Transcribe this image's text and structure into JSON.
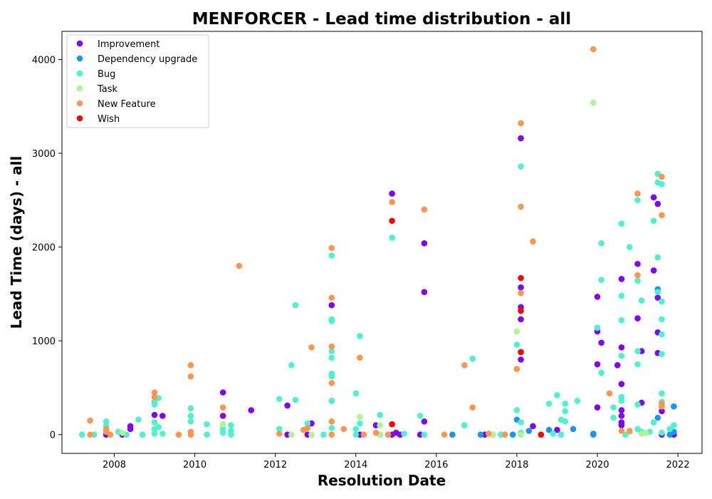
{
  "chart_data": {
    "type": "scatter",
    "title": "MENFORCER - Lead time distribution - all",
    "xlabel": "Resolution Date",
    "ylabel": "Lead Time (days) - all",
    "xlim": [
      2006.7,
      2022.6
    ],
    "ylim": [
      -200,
      4300
    ],
    "x_ticks": [
      2008,
      2010,
      2012,
      2014,
      2016,
      2018,
      2020,
      2022
    ],
    "x_tick_labels": [
      "2008",
      "2010",
      "2012",
      "2014",
      "2016",
      "2018",
      "2020",
      "2022"
    ],
    "y_ticks": [
      0,
      1000,
      2000,
      3000,
      4000
    ],
    "y_tick_labels": [
      "0",
      "1000",
      "2000",
      "3000",
      "4000"
    ],
    "grid": false,
    "legend_position": "top-left",
    "series": [
      {
        "name": "Improvement",
        "color": "#8000ff",
        "points": [
          [
            2007.8,
            0
          ],
          [
            2008.2,
            0
          ],
          [
            2008.4,
            60
          ],
          [
            2008.4,
            90
          ],
          [
            2009.0,
            210
          ],
          [
            2009.2,
            200
          ],
          [
            2010.7,
            450
          ],
          [
            2010.7,
            200
          ],
          [
            2011.4,
            260
          ],
          [
            2012.3,
            310
          ],
          [
            2012.3,
            0
          ],
          [
            2012.8,
            0
          ],
          [
            2012.9,
            120
          ],
          [
            2013.4,
            1380
          ],
          [
            2013.4,
            360
          ],
          [
            2014.1,
            0
          ],
          [
            2014.5,
            100
          ],
          [
            2014.6,
            0
          ],
          [
            2014.9,
            2570
          ],
          [
            2014.9,
            0
          ],
          [
            2015.0,
            20
          ],
          [
            2015.1,
            0
          ],
          [
            2015.6,
            0
          ],
          [
            2015.7,
            2040
          ],
          [
            2015.7,
            1520
          ],
          [
            2015.7,
            140
          ],
          [
            2017.2,
            0
          ],
          [
            2017.4,
            0
          ],
          [
            2018.1,
            1570
          ],
          [
            2018.1,
            1360
          ],
          [
            2018.1,
            1230
          ],
          [
            2018.1,
            800
          ],
          [
            2018.1,
            3160
          ],
          [
            2018.4,
            90
          ],
          [
            2019.0,
            50
          ],
          [
            2020.0,
            1470
          ],
          [
            2020.0,
            1100
          ],
          [
            2020.0,
            750
          ],
          [
            2020.0,
            290
          ],
          [
            2020.1,
            980
          ],
          [
            2020.5,
            740
          ],
          [
            2020.6,
            1660
          ],
          [
            2020.6,
            930
          ],
          [
            2020.6,
            540
          ],
          [
            2020.6,
            260
          ],
          [
            2020.6,
            200
          ],
          [
            2020.6,
            130
          ],
          [
            2020.6,
            100
          ],
          [
            2021.0,
            1820
          ],
          [
            2021.0,
            1240
          ],
          [
            2021.1,
            890
          ],
          [
            2021.1,
            340
          ],
          [
            2021.4,
            2530
          ],
          [
            2021.4,
            1750
          ],
          [
            2021.5,
            2460
          ],
          [
            2021.5,
            1460
          ],
          [
            2021.5,
            1090
          ],
          [
            2021.5,
            870
          ],
          [
            2021.6,
            250
          ],
          [
            2021.6,
            0
          ],
          [
            2021.9,
            0
          ]
        ]
      },
      {
        "name": "Dependency upgrade",
        "color": "#1996f3",
        "points": [
          [
            2016.4,
            0
          ],
          [
            2017.1,
            0
          ],
          [
            2017.9,
            0
          ],
          [
            2018.0,
            160
          ],
          [
            2018.3,
            40
          ],
          [
            2018.8,
            50
          ],
          [
            2019.4,
            60
          ],
          [
            2019.9,
            0
          ],
          [
            2019.9,
            10
          ],
          [
            2021.5,
            1550
          ],
          [
            2021.5,
            180
          ],
          [
            2021.8,
            0
          ],
          [
            2021.9,
            300
          ],
          [
            2021.9,
            30
          ]
        ]
      },
      {
        "name": "Bug",
        "color": "#4df3ce",
        "points": [
          [
            2007.2,
            0
          ],
          [
            2007.5,
            0
          ],
          [
            2007.8,
            140
          ],
          [
            2007.8,
            90
          ],
          [
            2008.1,
            30
          ],
          [
            2008.3,
            0
          ],
          [
            2008.6,
            160
          ],
          [
            2008.7,
            0
          ],
          [
            2009.0,
            350
          ],
          [
            2009.0,
            320
          ],
          [
            2009.0,
            130
          ],
          [
            2009.0,
            60
          ],
          [
            2009.0,
            10
          ],
          [
            2009.1,
            390
          ],
          [
            2009.1,
            80
          ],
          [
            2009.2,
            10
          ],
          [
            2009.9,
            280
          ],
          [
            2009.9,
            200
          ],
          [
            2009.9,
            140
          ],
          [
            2010.3,
            110
          ],
          [
            2010.3,
            0
          ],
          [
            2010.7,
            60
          ],
          [
            2010.7,
            20
          ],
          [
            2010.9,
            100
          ],
          [
            2010.9,
            40
          ],
          [
            2010.9,
            0
          ],
          [
            2012.1,
            380
          ],
          [
            2012.1,
            60
          ],
          [
            2012.4,
            740
          ],
          [
            2012.5,
            1380
          ],
          [
            2012.5,
            370
          ],
          [
            2012.8,
            120
          ],
          [
            2012.9,
            0
          ],
          [
            2013.2,
            0
          ],
          [
            2013.4,
            1910
          ],
          [
            2013.4,
            1230
          ],
          [
            2013.4,
            1210
          ],
          [
            2013.4,
            890
          ],
          [
            2013.4,
            820
          ],
          [
            2013.4,
            650
          ],
          [
            2013.4,
            620
          ],
          [
            2013.4,
            360
          ],
          [
            2013.4,
            140
          ],
          [
            2013.4,
            70
          ],
          [
            2014.0,
            440
          ],
          [
            2014.0,
            60
          ],
          [
            2014.0,
            0
          ],
          [
            2014.1,
            1050
          ],
          [
            2014.1,
            120
          ],
          [
            2014.6,
            210
          ],
          [
            2014.8,
            0
          ],
          [
            2014.9,
            2100
          ],
          [
            2015.2,
            10
          ],
          [
            2015.6,
            200
          ],
          [
            2015.7,
            0
          ],
          [
            2016.7,
            100
          ],
          [
            2016.9,
            810
          ],
          [
            2017.6,
            0
          ],
          [
            2018.0,
            960
          ],
          [
            2018.0,
            700
          ],
          [
            2018.0,
            260
          ],
          [
            2018.1,
            2860
          ],
          [
            2018.1,
            130
          ],
          [
            2018.1,
            20
          ],
          [
            2018.8,
            330
          ],
          [
            2018.9,
            10
          ],
          [
            2019.0,
            420
          ],
          [
            2019.1,
            160
          ],
          [
            2019.1,
            0
          ],
          [
            2019.2,
            330
          ],
          [
            2019.2,
            250
          ],
          [
            2019.2,
            140
          ],
          [
            2019.5,
            360
          ],
          [
            2020.0,
            1140
          ],
          [
            2020.1,
            2040
          ],
          [
            2020.1,
            1650
          ],
          [
            2020.1,
            660
          ],
          [
            2020.4,
            290
          ],
          [
            2020.4,
            180
          ],
          [
            2020.6,
            2250
          ],
          [
            2020.6,
            1480
          ],
          [
            2020.6,
            1220
          ],
          [
            2020.6,
            840
          ],
          [
            2020.6,
            400
          ],
          [
            2020.6,
            360
          ],
          [
            2020.7,
            0
          ],
          [
            2020.8,
            2000
          ],
          [
            2021.0,
            2500
          ],
          [
            2021.0,
            1640
          ],
          [
            2021.0,
            890
          ],
          [
            2021.0,
            750
          ],
          [
            2021.0,
            320
          ],
          [
            2021.0,
            60
          ],
          [
            2021.1,
            1430
          ],
          [
            2021.1,
            30
          ],
          [
            2021.3,
            30
          ],
          [
            2021.4,
            2280
          ],
          [
            2021.4,
            130
          ],
          [
            2021.5,
            2780
          ],
          [
            2021.5,
            2690
          ],
          [
            2021.5,
            1890
          ],
          [
            2021.5,
            1520
          ],
          [
            2021.6,
            2670
          ],
          [
            2021.6,
            1420
          ],
          [
            2021.6,
            1230
          ],
          [
            2021.6,
            1070
          ],
          [
            2021.6,
            860
          ],
          [
            2021.6,
            440
          ],
          [
            2021.6,
            350
          ],
          [
            2021.6,
            20
          ],
          [
            2021.8,
            60
          ],
          [
            2021.9,
            100
          ]
        ]
      },
      {
        "name": "Task",
        "color": "#b2f396",
        "points": [
          [
            2008.2,
            20
          ],
          [
            2010.7,
            110
          ],
          [
            2012.4,
            0
          ],
          [
            2012.9,
            0
          ],
          [
            2013.4,
            0
          ],
          [
            2014.1,
            190
          ],
          [
            2014.6,
            100
          ],
          [
            2014.6,
            0
          ],
          [
            2017.4,
            0
          ],
          [
            2017.7,
            0
          ],
          [
            2018.0,
            1100
          ],
          [
            2018.1,
            0
          ],
          [
            2019.9,
            3540
          ],
          [
            2020.8,
            30
          ],
          [
            2021.1,
            10
          ],
          [
            2021.2,
            20
          ]
        ]
      },
      {
        "name": "New Feature",
        "color": "#ff964f",
        "points": [
          [
            2007.4,
            150
          ],
          [
            2007.4,
            0
          ],
          [
            2007.8,
            60
          ],
          [
            2007.8,
            30
          ],
          [
            2007.9,
            0
          ],
          [
            2009.0,
            450
          ],
          [
            2009.0,
            400
          ],
          [
            2009.6,
            0
          ],
          [
            2009.9,
            740
          ],
          [
            2009.9,
            620
          ],
          [
            2009.9,
            30
          ],
          [
            2009.9,
            0
          ],
          [
            2010.7,
            290
          ],
          [
            2011.1,
            1800
          ],
          [
            2012.1,
            10
          ],
          [
            2012.7,
            50
          ],
          [
            2012.8,
            70
          ],
          [
            2012.9,
            930
          ],
          [
            2013.4,
            1990
          ],
          [
            2013.4,
            1460
          ],
          [
            2013.4,
            940
          ],
          [
            2013.4,
            550
          ],
          [
            2013.4,
            140
          ],
          [
            2013.4,
            0
          ],
          [
            2013.7,
            60
          ],
          [
            2014.1,
            820
          ],
          [
            2014.2,
            0
          ],
          [
            2014.5,
            20
          ],
          [
            2014.8,
            0
          ],
          [
            2014.9,
            2480
          ],
          [
            2015.7,
            2400
          ],
          [
            2016.2,
            0
          ],
          [
            2016.7,
            740
          ],
          [
            2016.9,
            290
          ],
          [
            2017.3,
            10
          ],
          [
            2017.7,
            0
          ],
          [
            2018.0,
            700
          ],
          [
            2018.1,
            3320
          ],
          [
            2018.1,
            2430
          ],
          [
            2018.1,
            1510
          ],
          [
            2018.4,
            2060
          ],
          [
            2019.9,
            4110
          ],
          [
            2020.3,
            440
          ],
          [
            2020.6,
            40
          ],
          [
            2020.8,
            40
          ],
          [
            2021.0,
            2570
          ],
          [
            2021.0,
            1700
          ],
          [
            2021.6,
            2750
          ],
          [
            2021.6,
            2340
          ],
          [
            2021.6,
            330
          ],
          [
            2021.6,
            300
          ]
        ]
      },
      {
        "name": "Wish",
        "color": "#ff0000",
        "points": [
          [
            2014.9,
            2280
          ],
          [
            2014.9,
            110
          ],
          [
            2018.1,
            1670
          ],
          [
            2018.1,
            1320
          ],
          [
            2018.1,
            880
          ],
          [
            2018.6,
            0
          ]
        ]
      }
    ]
  }
}
